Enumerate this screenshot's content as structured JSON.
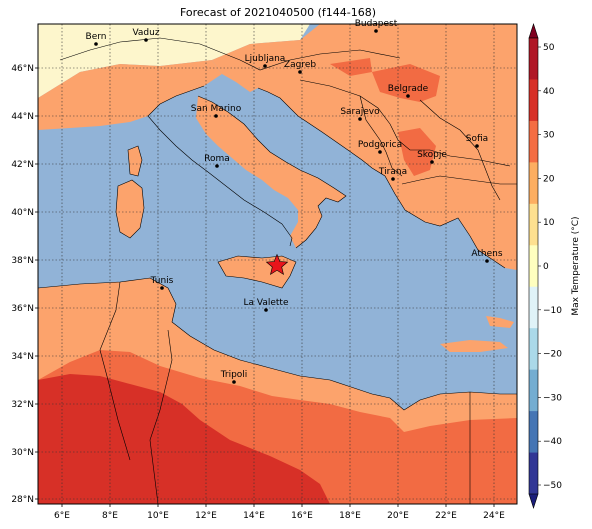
{
  "title": "Forecast of 2021040500 (f144-168)",
  "colorbar": {
    "label": "Max Temperature (°C)",
    "ticks": [
      "50",
      "40",
      "30",
      "20",
      "10",
      "0",
      "−10",
      "−20",
      "−30",
      "−40",
      "−50"
    ],
    "colors": [
      "#7f0020",
      "#b01726",
      "#d73027",
      "#f46d43",
      "#fdae61",
      "#fee090",
      "#ffffbf",
      "#e0f3f8",
      "#abd9e9",
      "#74add1",
      "#4575b4",
      "#313695",
      "#1b1e7a"
    ]
  },
  "axes": {
    "x_ticks": [
      "6°E",
      "8°E",
      "10°E",
      "12°E",
      "14°E",
      "16°E",
      "18°E",
      "20°E",
      "22°E",
      "24°E"
    ],
    "y_ticks": [
      "46°N",
      "44°N",
      "42°N",
      "40°N",
      "38°N",
      "36°N",
      "34°N",
      "32°N",
      "30°N",
      "28°N"
    ]
  },
  "colors": {
    "sea": "#91b3d7",
    "temp_10_20": "#fca36c",
    "temp_20_30": "#f26b43",
    "temp_30_40": "#d73027",
    "temp_0_10": "#fdf6cc"
  },
  "cities": [
    {
      "name": "Bern"
    },
    {
      "name": "Vaduz"
    },
    {
      "name": "Budapest"
    },
    {
      "name": "Ljubljana"
    },
    {
      "name": "Zagreb"
    },
    {
      "name": "Belgrade"
    },
    {
      "name": "San Marino"
    },
    {
      "name": "Sarajevo"
    },
    {
      "name": "Sofia"
    },
    {
      "name": "Podgorica"
    },
    {
      "name": "Skopje"
    },
    {
      "name": "Roma"
    },
    {
      "name": "Tirana"
    },
    {
      "name": "Athens"
    },
    {
      "name": "Tunis"
    },
    {
      "name": "La Valette"
    },
    {
      "name": "Tripoli"
    }
  ],
  "marker": {
    "name": "star-marker",
    "color": "#e8141b"
  }
}
